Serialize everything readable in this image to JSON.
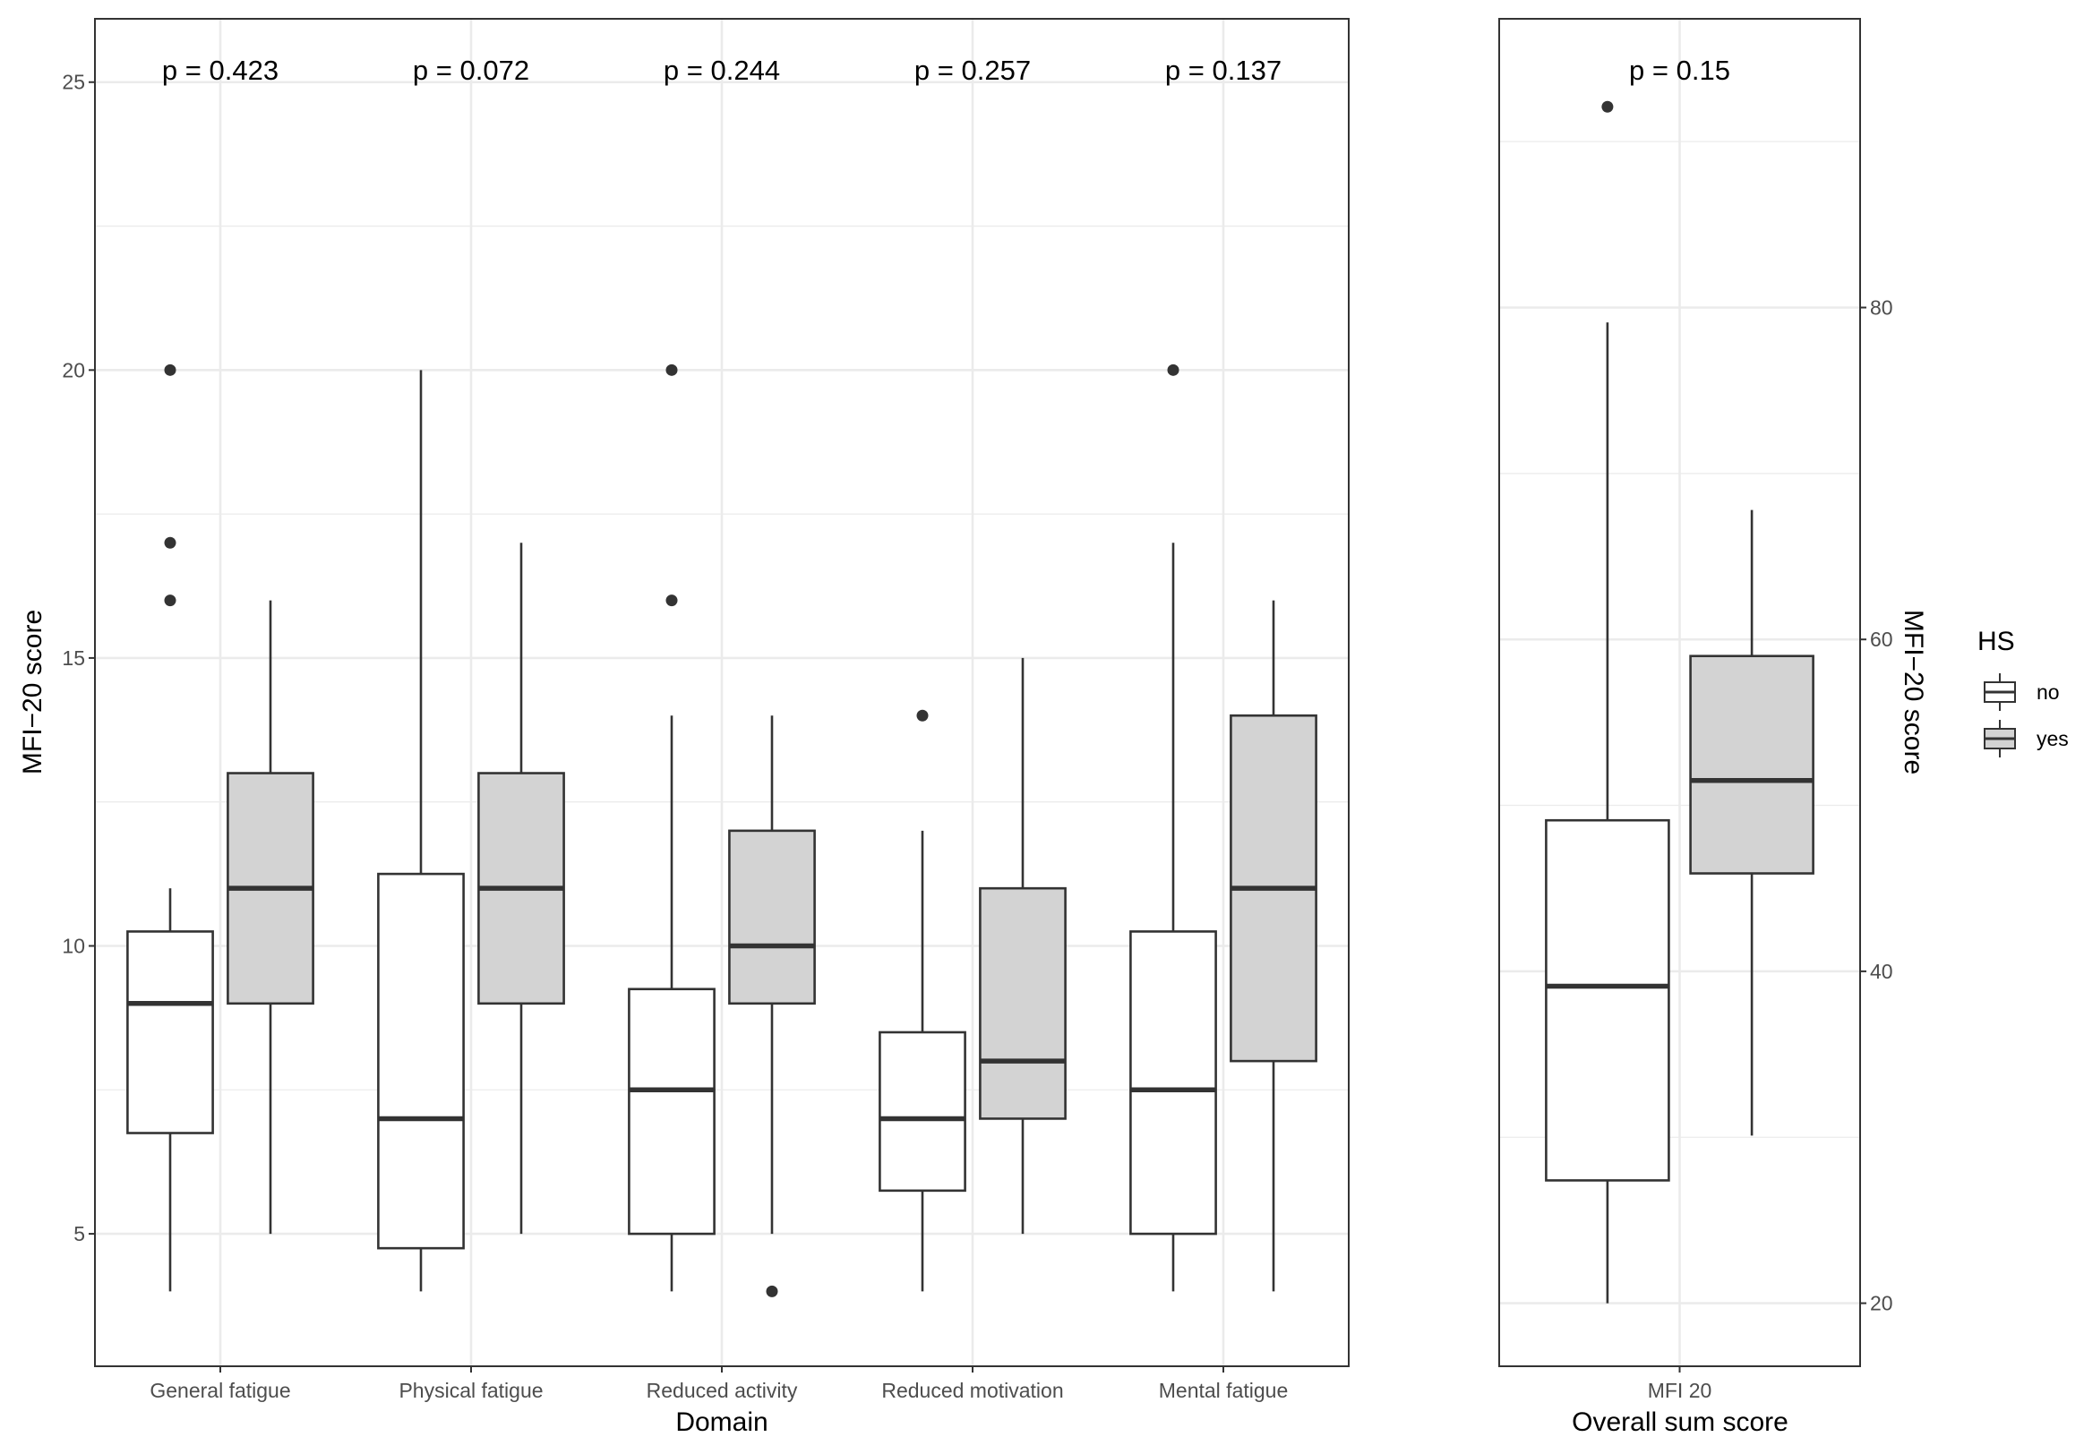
{
  "chart_data": [
    {
      "type": "box",
      "panel": "domains",
      "xlabel": "Domain",
      "ylabel": "MFI−20 score",
      "ylim": [
        2.7,
        26.1
      ],
      "yticks": [
        5,
        10,
        15,
        20,
        25
      ],
      "categories": [
        "General fatigue",
        "Physical fatigue",
        "Reduced activity",
        "Reduced motivation",
        "Mental fatigue"
      ],
      "pvalues": [
        "p = 0.423",
        "p = 0.072",
        "p = 0.244",
        "p = 0.257",
        "p = 0.137"
      ],
      "series": [
        {
          "name": "no",
          "boxes": [
            {
              "lower_whisker": 4,
              "q1": 6.75,
              "median": 9,
              "q3": 10.25,
              "upper_whisker": 11,
              "outliers": [
                16,
                17,
                20
              ]
            },
            {
              "lower_whisker": 4,
              "q1": 4.75,
              "median": 7,
              "q3": 11.25,
              "upper_whisker": 20,
              "outliers": []
            },
            {
              "lower_whisker": 4,
              "q1": 5,
              "median": 7.5,
              "q3": 9.25,
              "upper_whisker": 14,
              "outliers": [
                16,
                20
              ]
            },
            {
              "lower_whisker": 4,
              "q1": 5.75,
              "median": 7,
              "q3": 8.5,
              "upper_whisker": 12,
              "outliers": [
                14
              ]
            },
            {
              "lower_whisker": 4,
              "q1": 5,
              "median": 7.5,
              "q3": 10.25,
              "upper_whisker": 17,
              "outliers": [
                20
              ]
            }
          ]
        },
        {
          "name": "yes",
          "boxes": [
            {
              "lower_whisker": 5,
              "q1": 9,
              "median": 11,
              "q3": 13,
              "upper_whisker": 16,
              "outliers": []
            },
            {
              "lower_whisker": 5,
              "q1": 9,
              "median": 11,
              "q3": 13,
              "upper_whisker": 17,
              "outliers": []
            },
            {
              "lower_whisker": 5,
              "q1": 9,
              "median": 10,
              "q3": 12,
              "upper_whisker": 14,
              "outliers": [
                4
              ]
            },
            {
              "lower_whisker": 5,
              "q1": 7,
              "median": 8,
              "q3": 11,
              "upper_whisker": 15,
              "outliers": []
            },
            {
              "lower_whisker": 4,
              "q1": 8,
              "median": 11,
              "q3": 14,
              "upper_whisker": 16,
              "outliers": []
            }
          ]
        }
      ]
    },
    {
      "type": "box",
      "panel": "overall",
      "xlabel": "Overall sum score",
      "ylabel": "MFI−20 score",
      "ylim": [
        16.2,
        97.4
      ],
      "yticks": [
        20,
        40,
        60,
        80
      ],
      "categories": [
        "MFI 20"
      ],
      "pvalues": [
        "p = 0.15"
      ],
      "series": [
        {
          "name": "no",
          "boxes": [
            {
              "lower_whisker": 20,
              "q1": 27.4,
              "median": 39.1,
              "q3": 49.1,
              "upper_whisker": 79.1,
              "outliers": [
                92.1
              ]
            }
          ]
        },
        {
          "name": "yes",
          "boxes": [
            {
              "lower_whisker": 30.1,
              "q1": 45.9,
              "median": 51.5,
              "q3": 59.0,
              "upper_whisker": 67.8,
              "outliers": []
            }
          ]
        }
      ]
    }
  ],
  "legend": {
    "title": "HS",
    "items": [
      {
        "label": "no",
        "fill": "#ffffff"
      },
      {
        "label": "yes",
        "fill": "#d3d3d3"
      }
    ]
  },
  "colors": {
    "no_fill": "#ffffff",
    "yes_fill": "#d3d3d3",
    "stroke": "#333333",
    "grid": "#ebebeb",
    "panel_border": "#333333"
  }
}
